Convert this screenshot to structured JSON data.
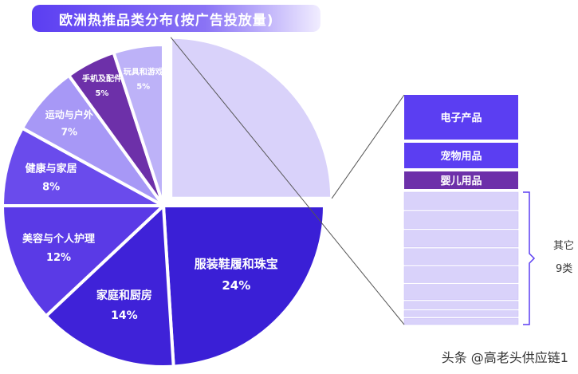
{
  "title": "欧洲热推品类分布(按广告投放量)",
  "colors": {
    "title_bar": "#5b3ef2",
    "dark_purple": "#3a1fd6",
    "violet": "#6a4bec",
    "medium_violet": "#8b75f2",
    "lavender": "#a798f6",
    "plum": "#6d30a9",
    "light_lavender": "#bdb2f8",
    "pale_lavender": "#d9d2fa"
  },
  "chart_data": {
    "type": "pie",
    "slices": [
      {
        "label": "服装鞋履和珠宝",
        "value": 24,
        "value_label": "24%",
        "color": "#3a1fd6"
      },
      {
        "label": "家庭和厨房",
        "value": 14,
        "value_label": "14%",
        "color": "#3f22d8"
      },
      {
        "label": "美容与个人护理",
        "value": 12,
        "value_label": "12%",
        "color": "#5a3ae6"
      },
      {
        "label": "健康与家居",
        "value": 8,
        "value_label": "8%",
        "color": "#6a4bec"
      },
      {
        "label": "运动与户外",
        "value": 7,
        "value_label": "7%",
        "color": "#a798f6"
      },
      {
        "label": "手机及配件",
        "value": 5,
        "value_label": "5%",
        "color": "#6d30a9"
      },
      {
        "label": "玩具和游戏",
        "value": 5,
        "value_label": "5%",
        "color": "#bdb2f8"
      },
      {
        "label": "",
        "value": 25,
        "value_label": "",
        "color": "#d9d2fa"
      }
    ],
    "breakdown_bar": {
      "labeled_segments": [
        {
          "label": "电子产品",
          "color": "#5b3ef2"
        },
        {
          "label": "宠物用品",
          "color": "#5b3ef2"
        },
        {
          "label": "婴儿用品",
          "color": "#6d30a9"
        }
      ],
      "other_segment_count": 9,
      "other_color": "#d9d2fa",
      "other_label": "其它",
      "other_count_label": "9类"
    }
  },
  "watermark": "头条 @高老头供应链1"
}
